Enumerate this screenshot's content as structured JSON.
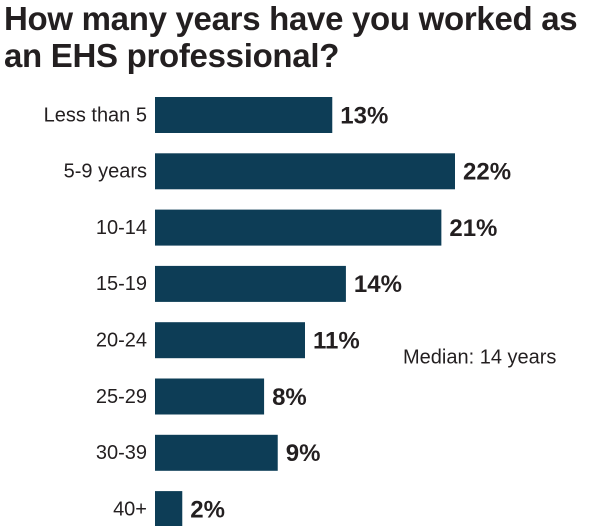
{
  "chart_data": {
    "type": "bar",
    "orientation": "horizontal",
    "title": "How many years have you worked as an EHS professional?",
    "categories": [
      "Less than 5",
      "5-9 years",
      "10-14",
      "15-19",
      "20-24",
      "25-29",
      "30-39",
      "40+"
    ],
    "values": [
      13,
      22,
      21,
      14,
      11,
      8,
      9,
      2
    ],
    "value_labels": [
      "13%",
      "22%",
      "21%",
      "14%",
      "11%",
      "8%",
      "9%",
      "2%"
    ],
    "color": "#0d3d56",
    "annotation": "Median: 14 years"
  }
}
